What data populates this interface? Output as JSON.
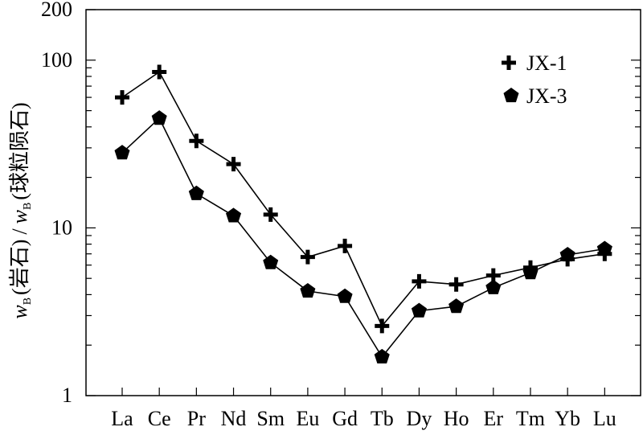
{
  "chart_data": {
    "type": "line",
    "title": "",
    "xlabel": "",
    "categories": [
      "La",
      "Ce",
      "Pr",
      "Nd",
      "Sm",
      "Eu",
      "Gd",
      "Tb",
      "Dy",
      "Ho",
      "Er",
      "Tm",
      "Yb",
      "Lu"
    ],
    "series": [
      {
        "name": "JX-1",
        "marker": "plus",
        "values": [
          60,
          85,
          33,
          24,
          12,
          6.7,
          7.8,
          2.6,
          4.8,
          4.6,
          5.2,
          5.8,
          6.5,
          7.0
        ]
      },
      {
        "name": "JX-3",
        "marker": "pentagon",
        "values": [
          28,
          45,
          16,
          11.8,
          6.2,
          4.2,
          3.9,
          1.7,
          3.2,
          3.4,
          4.4,
          5.4,
          6.9,
          7.5
        ]
      }
    ],
    "yscale": "log",
    "ylim": [
      1,
      200
    ],
    "yticks": [
      1,
      10,
      100,
      200
    ],
    "ytick_labels": [
      "1",
      "10",
      "100",
      "200"
    ],
    "ylabel": {
      "var": "w",
      "sub": "B",
      "numerator": "(岩石)",
      "separator": "/",
      "denominator": "(球粒陨石)"
    },
    "legend": "top-right",
    "grid": false,
    "color": "#000000"
  }
}
